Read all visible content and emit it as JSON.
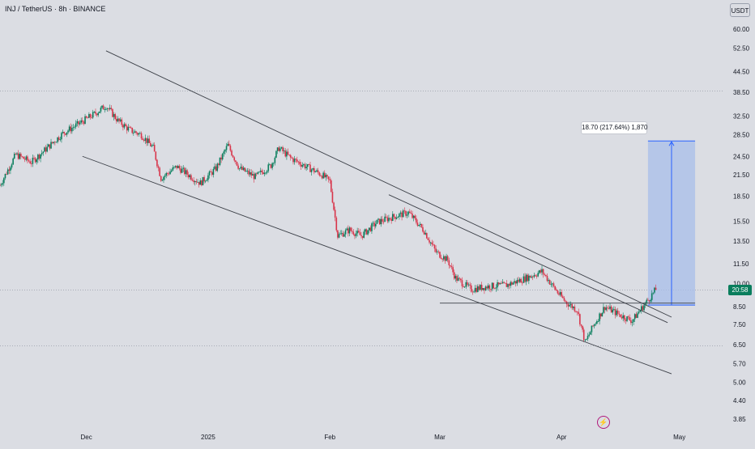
{
  "header": {
    "title": "INJ / TetherUS · 8h · BINANCE"
  },
  "currency": "USDT",
  "last_price_badge": "20:58",
  "measure_label": "18.70 (217.64%) 1,870",
  "icons": {
    "replay": "lightning-bolt-icon"
  },
  "colors": {
    "up": "#0a7e5d",
    "down": "#d8344a",
    "measure_fill": "#a8bde9",
    "measure_line": "#2962ff",
    "background": "#dbdde3"
  },
  "chart_data": {
    "type": "candlestick",
    "y_scale": "log",
    "ylim": [
      3.6,
      68
    ],
    "y_ticks": [
      60.0,
      52.5,
      44.5,
      38.5,
      32.5,
      28.5,
      24.5,
      21.5,
      18.5,
      15.5,
      13.5,
      11.5,
      10.0,
      8.5,
      7.5,
      6.5,
      5.7,
      5.0,
      4.4,
      3.85
    ],
    "y_tick_labels": [
      "60.00",
      "52.50",
      "44.50",
      "38.50",
      "32.50",
      "28.50",
      "24.50",
      "21.50",
      "18.50",
      "15.50",
      "13.50",
      "11.50",
      "10.00",
      "8.50",
      "7.50",
      "6.50",
      "5.70",
      "5.00",
      "4.40",
      "3.85"
    ],
    "xlim": [
      "2024-11-09",
      "2025-05-12"
    ],
    "x_ticks": [
      {
        "date": "2024-12-01",
        "label": "Dec"
      },
      {
        "date": "2025-01-01",
        "label": "2025"
      },
      {
        "date": "2025-02-01",
        "label": "Feb"
      },
      {
        "date": "2025-03-01",
        "label": "Mar"
      },
      {
        "date": "2025-04-01",
        "label": "Apr"
      },
      {
        "date": "2025-05-01",
        "label": "May"
      }
    ],
    "price_path": [
      [
        "2024-11-09",
        20.0
      ],
      [
        "2024-11-13",
        24.8
      ],
      [
        "2024-11-17",
        23.5
      ],
      [
        "2024-11-21",
        26.0
      ],
      [
        "2024-11-25",
        28.8
      ],
      [
        "2024-11-29",
        30.8
      ],
      [
        "2024-12-03",
        33.0
      ],
      [
        "2024-12-06",
        35.0
      ],
      [
        "2024-12-09",
        31.5
      ],
      [
        "2024-12-12",
        29.5
      ],
      [
        "2024-12-15",
        28.5
      ],
      [
        "2024-12-18",
        26.0
      ],
      [
        "2024-12-20",
        21.0
      ],
      [
        "2024-12-24",
        22.8
      ],
      [
        "2024-12-27",
        21.5
      ],
      [
        "2024-12-30",
        20.3
      ],
      [
        "2025-01-03",
        22.5
      ],
      [
        "2025-01-06",
        26.5
      ],
      [
        "2025-01-09",
        22.5
      ],
      [
        "2025-01-13",
        21.2
      ],
      [
        "2025-01-17",
        23.0
      ],
      [
        "2025-01-19",
        26.0
      ],
      [
        "2025-01-22",
        24.2
      ],
      [
        "2025-01-26",
        22.8
      ],
      [
        "2025-01-30",
        21.5
      ],
      [
        "2025-02-01",
        20.5
      ],
      [
        "2025-02-03",
        14.0
      ],
      [
        "2025-02-06",
        14.6
      ],
      [
        "2025-02-09",
        14.0
      ],
      [
        "2025-02-13",
        15.4
      ],
      [
        "2025-02-17",
        16.0
      ],
      [
        "2025-02-21",
        16.5
      ],
      [
        "2025-02-25",
        14.5
      ],
      [
        "2025-02-28",
        12.5
      ],
      [
        "2025-03-03",
        11.8
      ],
      [
        "2025-03-05",
        10.4
      ],
      [
        "2025-03-09",
        9.6
      ],
      [
        "2025-03-13",
        9.8
      ],
      [
        "2025-03-18",
        9.9
      ],
      [
        "2025-03-22",
        10.3
      ],
      [
        "2025-03-27",
        10.9
      ],
      [
        "2025-03-31",
        9.4
      ],
      [
        "2025-04-02",
        8.8
      ],
      [
        "2025-04-05",
        8.3
      ],
      [
        "2025-04-07",
        6.6
      ],
      [
        "2025-04-09",
        7.4
      ],
      [
        "2025-04-12",
        8.5
      ],
      [
        "2025-04-16",
        8.0
      ],
      [
        "2025-04-19",
        7.7
      ],
      [
        "2025-04-21",
        8.3
      ],
      [
        "2025-04-23",
        8.9
      ],
      [
        "2025-04-25",
        9.6
      ]
    ],
    "annotations": [
      {
        "kind": "channel_upper",
        "from": [
          "2024-12-06",
          51.5
        ],
        "to": [
          "2025-04-29",
          7.9
        ]
      },
      {
        "kind": "channel_lower",
        "from": [
          "2024-11-30",
          24.5
        ],
        "to": [
          "2025-04-29",
          5.3
        ]
      },
      {
        "kind": "trendline",
        "from": [
          "2025-02-16",
          18.7
        ],
        "to": [
          "2025-04-28",
          7.6
        ]
      },
      {
        "kind": "support",
        "from": [
          "2025-03-01",
          8.72
        ],
        "to": [
          "2025-05-05",
          8.72
        ]
      },
      {
        "kind": "measure",
        "from": [
          "2025-04-23",
          8.6
        ],
        "to": [
          "2025-05-05",
          27.3
        ],
        "start_price": 8.6,
        "end_price": 27.3
      },
      {
        "kind": "hline",
        "price": 38.8
      },
      {
        "kind": "hline",
        "price": 9.55
      },
      {
        "kind": "hline",
        "price": 6.45
      }
    ]
  }
}
